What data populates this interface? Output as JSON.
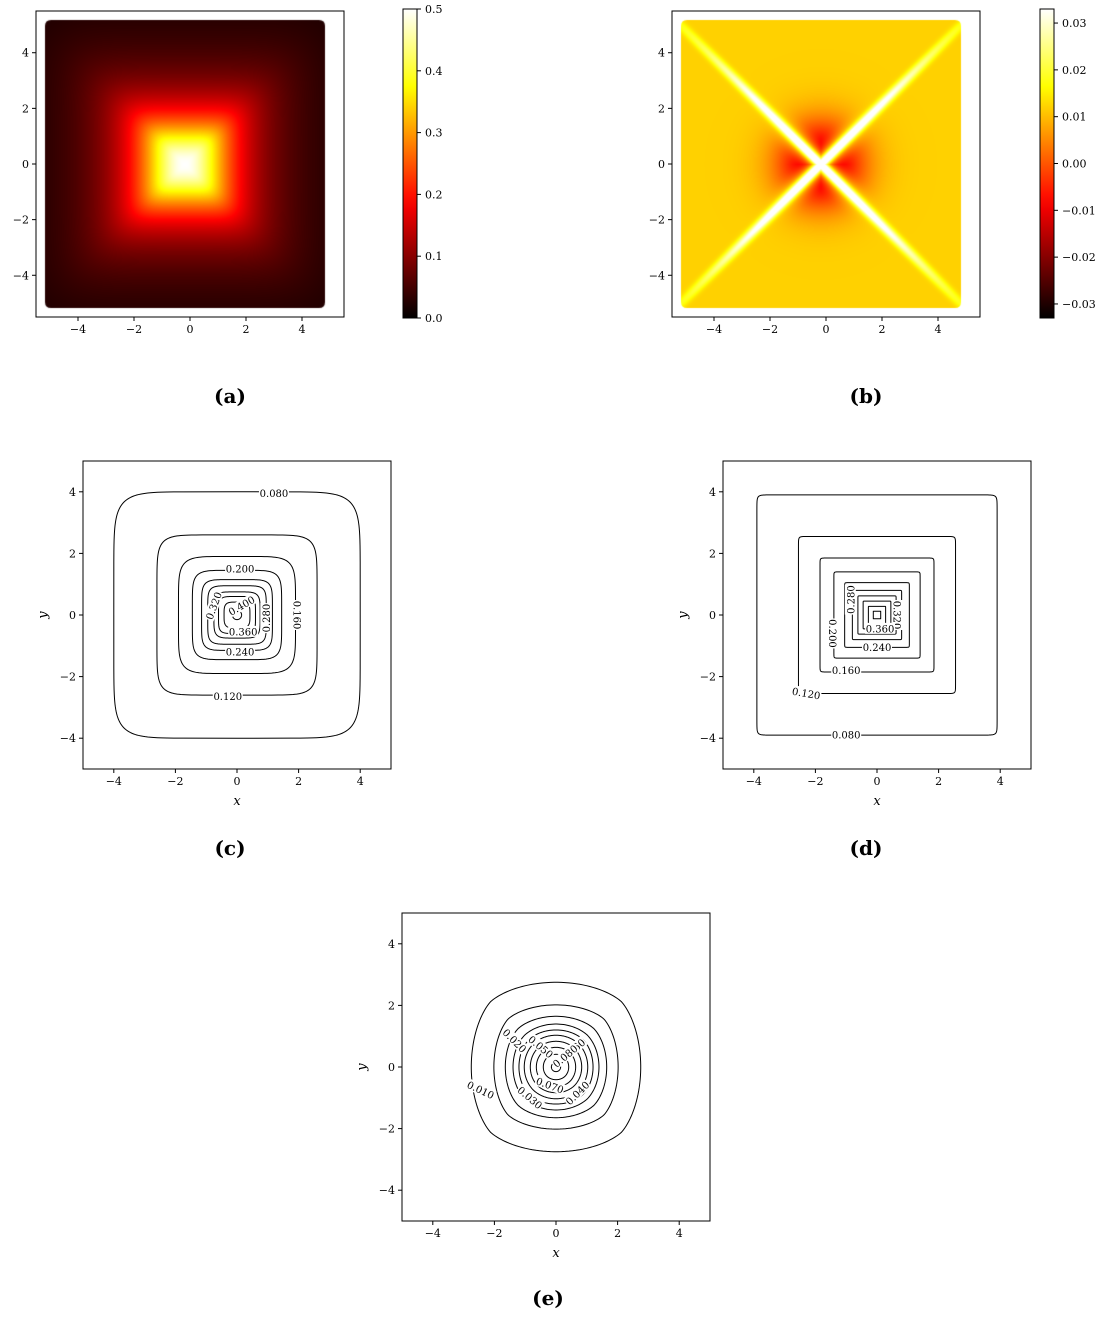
{
  "captions": {
    "a": "(a)",
    "b": "(b)",
    "c": "(c)",
    "d": "(d)",
    "e": "(e)"
  },
  "chart_data": [
    {
      "id": "a",
      "type": "heatmap",
      "xlim": [
        -5.5,
        5.5
      ],
      "ylim": [
        -5.5,
        5.5
      ],
      "xticks": [
        -4,
        -2,
        0,
        2,
        4
      ],
      "yticks": [
        -4,
        -2,
        0,
        2,
        4
      ],
      "xticklabels": [
        "−4",
        "−2",
        "0",
        "2",
        "4"
      ],
      "yticklabels": [
        "−4",
        "−2",
        "0",
        "2",
        "4"
      ],
      "colormap": "hot",
      "colorbar": {
        "range": [
          0.0,
          0.5
        ],
        "ticks": [
          0.0,
          0.1,
          0.2,
          0.3,
          0.4,
          0.5
        ],
        "labels": [
          "0.0",
          "0.1",
          "0.2",
          "0.3",
          "0.4",
          "0.5"
        ]
      },
      "field": {
        "kind": "peak",
        "center": [
          -0.2,
          0.0
        ],
        "peak_value": 0.5,
        "domain": [
          -5,
          5
        ]
      }
    },
    {
      "id": "b",
      "type": "heatmap",
      "xlim": [
        -5.5,
        5.5
      ],
      "ylim": [
        -5.5,
        5.5
      ],
      "xticks": [
        -4,
        -2,
        0,
        2,
        4
      ],
      "yticks": [
        -4,
        -2,
        0,
        2,
        4
      ],
      "xticklabels": [
        "−4",
        "−2",
        "0",
        "2",
        "4"
      ],
      "yticklabels": [
        "−4",
        "−2",
        "0",
        "2",
        "4"
      ],
      "colormap": "hot",
      "colorbar": {
        "range": [
          -0.033,
          0.033
        ],
        "ticks": [
          -0.03,
          -0.02,
          -0.01,
          0.0,
          0.01,
          0.02,
          0.03
        ],
        "labels": [
          "−0.03",
          "−0.02",
          "−0.01",
          "0.00",
          "0.01",
          "0.02",
          "0.03"
        ]
      },
      "field": {
        "kind": "error",
        "center": [
          -0.2,
          0.0
        ],
        "domain": [
          -5,
          5
        ]
      }
    },
    {
      "id": "c",
      "type": "contour",
      "xlim": [
        -5,
        5
      ],
      "ylim": [
        -5,
        5
      ],
      "xticks": [
        -4,
        -2,
        0,
        2,
        4
      ],
      "yticks": [
        -4,
        -2,
        0,
        2,
        4
      ],
      "xticklabels": [
        "−4",
        "−2",
        "0",
        "2",
        "4"
      ],
      "yticklabels": [
        "−4",
        "−2",
        "0",
        "2",
        "4"
      ],
      "xlabel": "x",
      "ylabel": "y",
      "levels": [
        {
          "half": 4.0,
          "exp": 8,
          "label": "0.080",
          "lx": 1.2,
          "ly": 3.95
        },
        {
          "half": 2.6,
          "exp": 8,
          "label": "0.120",
          "lx": -0.3,
          "ly": -2.65
        },
        {
          "half": 1.9,
          "exp": 6,
          "label": "0.160",
          "lx": 1.95,
          "ly": 0.0,
          "rot": 90
        },
        {
          "half": 1.45,
          "exp": 6,
          "label": "0.200",
          "lx": 0.1,
          "ly": 1.5
        },
        {
          "half": 1.15,
          "exp": 6,
          "label": "0.240",
          "lx": 0.1,
          "ly": -1.2
        },
        {
          "half": 0.95,
          "exp": 6,
          "label": "0.280",
          "lx": 0.95,
          "ly": -0.1,
          "rot": -90
        },
        {
          "half": 0.75,
          "exp": 5,
          "label": "0.320",
          "lx": -0.75,
          "ly": 0.3,
          "rot": -70
        },
        {
          "half": 0.6,
          "exp": 5,
          "label": "0.360",
          "lx": 0.2,
          "ly": -0.55
        },
        {
          "half": 0.42,
          "exp": 4,
          "label": "0.400",
          "lx": 0.15,
          "ly": 0.3,
          "rot": -30
        },
        {
          "half": 0.15,
          "exp": 2,
          "label": ""
        }
      ]
    },
    {
      "id": "d",
      "type": "contour",
      "xlim": [
        -5,
        5
      ],
      "ylim": [
        -5,
        5
      ],
      "xticks": [
        -4,
        -2,
        0,
        2,
        4
      ],
      "yticks": [
        -4,
        -2,
        0,
        2,
        4
      ],
      "xticklabels": [
        "−4",
        "−2",
        "0",
        "2",
        "4"
      ],
      "yticklabels": [
        "−4",
        "−2",
        "0",
        "2",
        "4"
      ],
      "xlabel": "x",
      "ylabel": "y",
      "levels": [
        {
          "half": 3.9,
          "exp": 50,
          "label": "0.080",
          "lx": -1.0,
          "ly": -3.9
        },
        {
          "half": 2.55,
          "exp": 50,
          "label": "0.120",
          "lx": -2.3,
          "ly": -2.55,
          "rot": 10
        },
        {
          "half": 1.85,
          "exp": 50,
          "label": "0.160",
          "lx": -1.0,
          "ly": -1.8
        },
        {
          "half": 1.4,
          "exp": 50,
          "label": "0.200",
          "lx": -1.45,
          "ly": -0.6,
          "rot": 90
        },
        {
          "half": 1.05,
          "exp": 50,
          "label": "0.240",
          "lx": 0.0,
          "ly": -1.05
        },
        {
          "half": 0.8,
          "exp": 50,
          "label": "0.280",
          "lx": -0.85,
          "ly": 0.5,
          "rot": -90
        },
        {
          "half": 0.62,
          "exp": 50,
          "label": "0.320",
          "lx": 0.65,
          "ly": 0.0,
          "rot": 90
        },
        {
          "half": 0.45,
          "exp": 50,
          "label": "0.360",
          "lx": 0.1,
          "ly": -0.45
        },
        {
          "half": 0.28,
          "exp": 50,
          "label": ""
        },
        {
          "half": 0.12,
          "exp": 50,
          "label": ""
        }
      ]
    },
    {
      "id": "e",
      "type": "contour",
      "xlim": [
        -5,
        5
      ],
      "ylim": [
        -5,
        5
      ],
      "xticks": [
        -4,
        -2,
        0,
        2,
        4
      ],
      "yticks": [
        -4,
        -2,
        0,
        2,
        4
      ],
      "xticklabels": [
        "−4",
        "−2",
        "0",
        "2",
        "4"
      ],
      "yticklabels": [
        "−4",
        "−2",
        "0",
        "2",
        "4"
      ],
      "xlabel": "x",
      "ylabel": "y",
      "levels": [
        {
          "half": 3.0,
          "exp": 1.6,
          "label": "0.010",
          "lx": -2.45,
          "ly": -0.75,
          "rot": 25
        },
        {
          "half": 2.2,
          "exp": 1.6,
          "label": "0.020",
          "lx": -1.35,
          "ly": 0.85,
          "rot": 45
        },
        {
          "half": 1.75,
          "exp": 1.7,
          "label": "0.030",
          "lx": -0.85,
          "ly": -1.0,
          "rot": 40
        },
        {
          "half": 1.45,
          "exp": 1.8,
          "label": "0.040",
          "lx": 0.7,
          "ly": -0.85,
          "rot": -45
        },
        {
          "half": 1.25,
          "exp": 1.8,
          "label": "0.050",
          "lx": -0.5,
          "ly": 0.65,
          "rot": 40
        },
        {
          "half": 1.05,
          "exp": 1.9,
          "label": "0.060",
          "lx": 0.55,
          "ly": 0.55,
          "rot": -40
        },
        {
          "half": 0.85,
          "exp": 1.9,
          "label": "0.070",
          "lx": -0.2,
          "ly": -0.6,
          "rot": 20
        },
        {
          "half": 0.65,
          "exp": 1.9,
          "label": "0.080",
          "lx": 0.3,
          "ly": 0.35,
          "rot": -40
        },
        {
          "half": 0.42,
          "exp": 1.9,
          "label": ""
        },
        {
          "half": 0.15,
          "exp": 2,
          "label": ""
        }
      ]
    }
  ]
}
